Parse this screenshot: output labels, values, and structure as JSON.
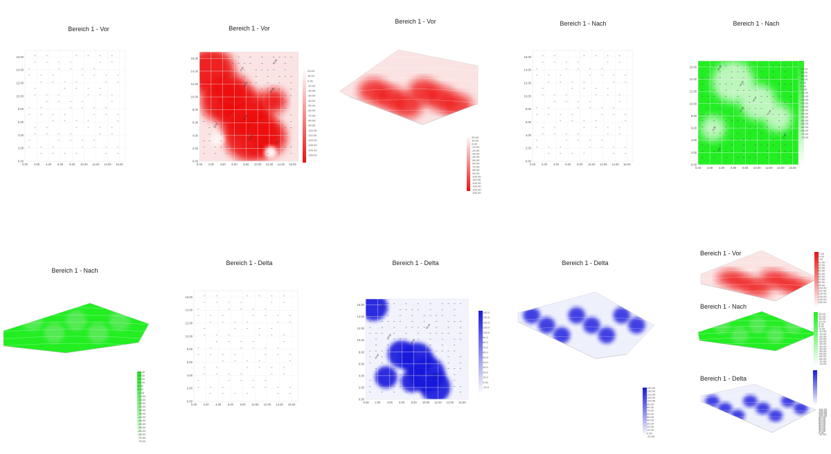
{
  "colors": {
    "red": "#ee1111",
    "green": "#22ee22",
    "blue": "#1818dd"
  },
  "chart_data": [
    {
      "id": "p1",
      "type": "scatter",
      "title": "Bereich 1 - Vor",
      "style": "points",
      "x_ticks": [
        "0.00",
        "2.00",
        "4.00",
        "6.00",
        "8.00",
        "10.00",
        "12.00",
        "14.00",
        "16.00"
      ],
      "y_ticks": [
        "0.00",
        "2.00",
        "4.00",
        "6.00",
        "8.00",
        "10.00",
        "12.00",
        "14.00",
        "16.00"
      ],
      "xlim": [
        0,
        17
      ],
      "ylim": [
        0,
        17
      ]
    },
    {
      "id": "p2",
      "type": "heatmap",
      "title": "Bereich 1 - Vor",
      "colormap": "red",
      "x_ticks": [
        "0.00",
        "2.00",
        "4.00",
        "6.00",
        "8.00",
        "10.00",
        "12.00",
        "14.00",
        "16.00"
      ],
      "y_ticks": [
        "0.00",
        "2.00",
        "4.00",
        "6.00",
        "8.00",
        "10.00",
        "12.00",
        "14.00",
        "16.00"
      ],
      "xlim": [
        0,
        17
      ],
      "ylim": [
        0,
        17
      ],
      "legend": [
        "20.00",
        "10.00",
        "0.00",
        "-10.00",
        "-20.00",
        "-30.00",
        "-40.00",
        "-50.00",
        "-60.00",
        "-70.00",
        "-80.00",
        "-90.00",
        "-100.00",
        "-110.00",
        "-120.00",
        "-130.00",
        "-140.00",
        "-150.00"
      ],
      "contour_labels": [
        "-5.00",
        "-10.00",
        "-40.00",
        "-60.00",
        "-70.00",
        "-80.00",
        "-100.00",
        "0.00"
      ]
    },
    {
      "id": "p3",
      "type": "surface",
      "title": "Bereich 1 - Vor",
      "colormap": "red",
      "legend": [
        "20.00",
        "10.00",
        "0.00",
        "-10.00",
        "-20.00",
        "-30.00",
        "-40.00",
        "-50.00",
        "-60.00",
        "-70.00",
        "-80.00",
        "-90.00",
        "-100.00",
        "-110.00",
        "-120.00",
        "-130.00",
        "-140.00",
        "-150.00"
      ]
    },
    {
      "id": "p4",
      "type": "scatter",
      "title": "Bereich 1 - Nach",
      "style": "points",
      "x_ticks": [
        "0.00",
        "2.00",
        "4.00",
        "6.00",
        "8.00",
        "10.00",
        "12.00",
        "14.00",
        "16.00"
      ],
      "y_ticks": [
        "0.00",
        "2.00",
        "4.00",
        "6.00",
        "8.00",
        "10.00",
        "12.00",
        "14.00",
        "16.00"
      ],
      "xlim": [
        0,
        17
      ],
      "ylim": [
        0,
        17
      ]
    },
    {
      "id": "p5",
      "type": "heatmap",
      "title": "Bereich 1 - Nach",
      "colormap": "green",
      "x_ticks": [
        "0.00",
        "2.00",
        "4.00",
        "6.00",
        "8.00",
        "10.00",
        "12.00",
        "14.00",
        "16.00"
      ],
      "y_ticks": [
        "0.00",
        "2.00",
        "4.00",
        "6.00",
        "8.00",
        "10.00",
        "12.00",
        "14.00",
        "16.00"
      ],
      "xlim": [
        0,
        17
      ],
      "ylim": [
        0,
        17
      ],
      "legend": [
        "25.00",
        "20.00",
        "15.00",
        "10.00",
        "5.00",
        "0.00",
        "-5.00",
        "-10.00",
        "-15.00",
        "-20.00",
        "-25.00",
        "-30.00",
        "-35.00",
        "-40.00",
        "-45.00",
        "-50.00",
        "-55.00",
        "-60.00",
        "-65.00",
        "-70.00",
        "-75.00"
      ],
      "contour_labels": [
        "-25.00",
        "-45.00",
        "-35.00",
        "-15.00",
        "-5.00",
        "-5.00",
        "-5.00",
        "-5.00"
      ]
    },
    {
      "id": "p6",
      "type": "surface",
      "title": "Bereich 1 - Nach",
      "colormap": "green",
      "legend": [
        "25.00",
        "20.00",
        "15.00",
        "10.00",
        "5.00",
        "0.00",
        "-5.00",
        "-10.00",
        "-15.00",
        "-20.00",
        "-25.00",
        "-30.00",
        "-35.00",
        "-40.00",
        "-45.00",
        "-50.00",
        "-55.00",
        "-60.00",
        "-65.00",
        "-70.00",
        "-75.00"
      ]
    },
    {
      "id": "p7",
      "type": "scatter",
      "title": "Bereich 1 - Delta",
      "style": "points",
      "x_ticks": [
        "0.00",
        "2.00",
        "4.00",
        "6.00",
        "8.00",
        "10.00",
        "12.00",
        "14.00",
        "16.00"
      ],
      "y_ticks": [
        "0.00",
        "2.00",
        "4.00",
        "6.00",
        "8.00",
        "10.00",
        "12.00",
        "14.00",
        "16.00"
      ],
      "xlim": [
        0,
        17
      ],
      "ylim": [
        0,
        17
      ]
    },
    {
      "id": "p8",
      "type": "heatmap",
      "title": "Bereich 1 - Delta",
      "colormap": "blue",
      "x_ticks": [
        "-0.00",
        "2.00",
        "4.00",
        "6.00",
        "8.00",
        "10.00",
        "12.00",
        "14.00",
        "16.00"
      ],
      "y_ticks": [
        "0.00",
        "2.00",
        "4.00",
        "6.00",
        "8.00",
        "10.00",
        "12.00",
        "14.00",
        "16.00"
      ],
      "xlim": [
        0,
        17
      ],
      "ylim": [
        0,
        17
      ],
      "legend": [
        "140.0",
        "130.0",
        "120.0",
        "110.0",
        "100.0",
        "90.0",
        "80.0",
        "70.0",
        "60.0",
        "50.0",
        "40.0",
        "30.0",
        "20.0",
        "10.0",
        "0.00",
        "-10.0"
      ],
      "contour_labels": [
        "40.00",
        "40.00",
        "80.00",
        "60.00",
        "40.00",
        "100.00"
      ]
    },
    {
      "id": "p9",
      "type": "surface",
      "title": "Bereich 1 - Delta",
      "colormap": "blue",
      "legend": [
        "140.00",
        "130.00",
        "120.00",
        "110.00",
        "100.00",
        "90.00",
        "80.00",
        "70.00",
        "60.00",
        "50.00",
        "40.00",
        "30.00",
        "20.00",
        "10.00",
        "0.00",
        "-10.00"
      ]
    },
    {
      "id": "p10",
      "type": "surface",
      "title": "Bereich 1 - Vor",
      "colormap": "red",
      "legend": [
        "20.00",
        "10.00",
        "0.00",
        "-10.00",
        "-20.00",
        "-30.00",
        "-40.00",
        "-50.00",
        "-60.00",
        "-70.00",
        "-80.00",
        "-90.00",
        "-100.00",
        "-110.00",
        "-120.00",
        "-130.00",
        "-140.00",
        "-150.00"
      ]
    },
    {
      "id": "p11",
      "type": "surface",
      "title": "Bereich 1 - Nach",
      "colormap": "green",
      "legend": [
        "25.00",
        "20.00",
        "15.00",
        "10.00",
        "5.00",
        "0.00",
        "-5.00",
        "-10.00",
        "-15.00",
        "-20.00",
        "-25.00",
        "-30.00",
        "-35.00",
        "-40.00",
        "-45.00",
        "-50.00",
        "-55.00",
        "-60.00",
        "-65.00",
        "-70.00",
        "-75.00"
      ]
    },
    {
      "id": "p12",
      "type": "surface",
      "title": "Bereich 1 - Delta",
      "colormap": "blue",
      "legend": [
        "140.00",
        "130.00",
        "120.00",
        "110.00",
        "100.00",
        "90.00",
        "80.00",
        "70.00",
        "60.00",
        "50.00",
        "40.00",
        "30.00",
        "20.00",
        "10.00",
        "0.00",
        "-10.00"
      ]
    }
  ]
}
